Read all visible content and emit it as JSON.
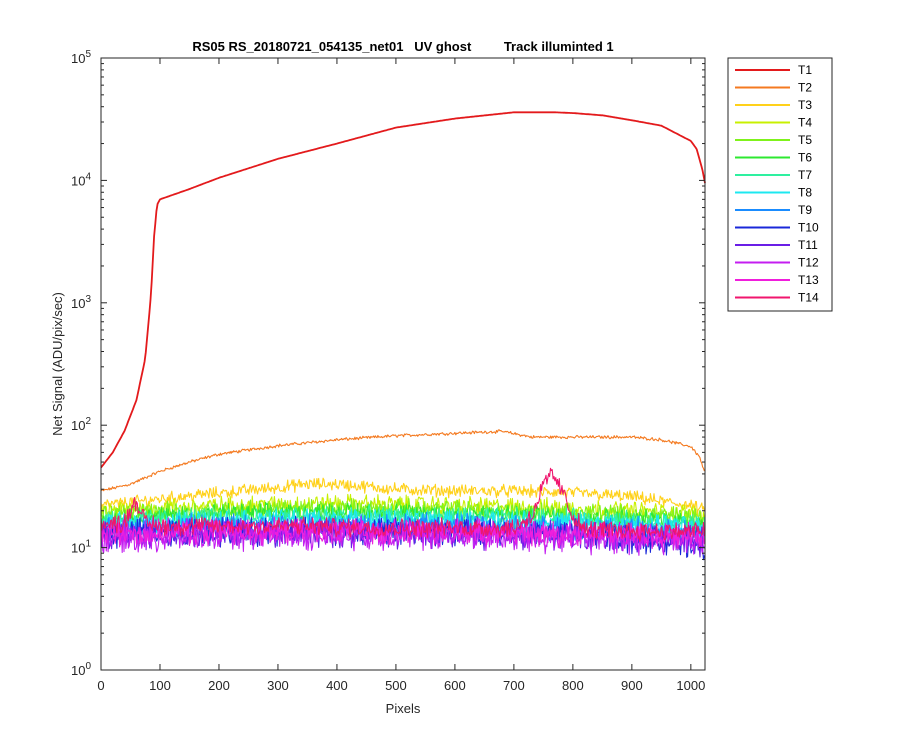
{
  "chart_data": {
    "type": "line",
    "title": "RS05 RS_20180721_054135_net01   UV ghost         Track illuminted 1",
    "xlabel": "Pixels",
    "ylabel": "Net Signal (ADU/pix/sec)",
    "xlim": [
      0,
      1024
    ],
    "ylim": [
      1,
      100000
    ],
    "yscale": "log",
    "xticks": [
      0,
      100,
      200,
      300,
      400,
      500,
      600,
      700,
      800,
      900,
      1000
    ],
    "xtick_labels": [
      "0",
      "100",
      "200",
      "300",
      "400",
      "500",
      "600",
      "700",
      "800",
      "900",
      "1000"
    ],
    "yticks": [
      1,
      10,
      100,
      1000,
      10000,
      100000
    ],
    "ytick_labels": [
      {
        "base": "10",
        "exp": "0"
      },
      {
        "base": "10",
        "exp": "1"
      },
      {
        "base": "10",
        "exp": "2"
      },
      {
        "base": "10",
        "exp": "3"
      },
      {
        "base": "10",
        "exp": "4"
      },
      {
        "base": "10",
        "exp": "5"
      }
    ],
    "grid": false,
    "legend_position": "outside-right",
    "series": [
      {
        "name": "T1",
        "color": "#e31a1c",
        "noise": 0,
        "x": [
          0,
          20,
          40,
          60,
          75,
          85,
          90,
          95,
          100,
          150,
          200,
          300,
          400,
          500,
          600,
          700,
          770,
          800,
          850,
          900,
          950,
          1000,
          1010,
          1020,
          1024
        ],
        "y": [
          45,
          60,
          90,
          160,
          350,
          1200,
          3500,
          6300,
          7000,
          8500,
          10500,
          15000,
          20000,
          27000,
          32000,
          36000,
          36000,
          35500,
          34000,
          31000,
          28000,
          21000,
          18000,
          12000,
          9500
        ]
      },
      {
        "name": "T2",
        "color": "#f47a20",
        "noise": 0.01,
        "x": [
          0,
          50,
          100,
          150,
          200,
          300,
          400,
          500,
          600,
          680,
          730,
          800,
          900,
          950,
          1000,
          1015,
          1024
        ],
        "y": [
          29,
          33,
          42,
          50,
          58,
          68,
          76,
          82,
          86,
          89,
          80,
          80,
          80,
          76,
          67,
          55,
          40
        ]
      },
      {
        "name": "T3",
        "color": "#ffd11a",
        "noise": 0.04,
        "x": [
          0,
          100,
          200,
          300,
          350,
          400,
          500,
          600,
          700,
          800,
          900,
          1000,
          1024
        ],
        "y": [
          22,
          25,
          28,
          31,
          33,
          33,
          30,
          29,
          29,
          28,
          26,
          22,
          20
        ]
      },
      {
        "name": "T4",
        "color": "#c8f000",
        "noise": 0.06,
        "x": [
          0,
          200,
          400,
          600,
          800,
          1000,
          1024
        ],
        "y": [
          20,
          22,
          23,
          22,
          21,
          19,
          18
        ]
      },
      {
        "name": "T5",
        "color": "#7ff21b",
        "noise": 0.06,
        "x": [
          0,
          200,
          400,
          600,
          800,
          1000,
          1024
        ],
        "y": [
          19,
          20.5,
          21,
          20.5,
          19.5,
          18,
          17
        ]
      },
      {
        "name": "T6",
        "color": "#2ee830",
        "noise": 0.06,
        "x": [
          0,
          200,
          400,
          600,
          800,
          1000,
          1024
        ],
        "y": [
          17.5,
          19,
          19.5,
          19,
          18,
          16.5,
          16
        ]
      },
      {
        "name": "T7",
        "color": "#2ef0a0",
        "noise": 0.07,
        "x": [
          0,
          200,
          400,
          600,
          800,
          1000,
          1024
        ],
        "y": [
          16.5,
          17.5,
          18,
          17.5,
          17,
          15.5,
          15
        ]
      },
      {
        "name": "T8",
        "color": "#1de8f0",
        "noise": 0.07,
        "x": [
          0,
          200,
          400,
          600,
          800,
          1000,
          1024
        ],
        "y": [
          15.5,
          16.5,
          17,
          16.5,
          16,
          14.5,
          14
        ]
      },
      {
        "name": "T9",
        "color": "#1a8cff",
        "noise": 0.08,
        "x": [
          0,
          200,
          400,
          600,
          800,
          1000,
          1024
        ],
        "y": [
          14.5,
          15,
          15.5,
          15,
          14.5,
          13,
          12.5
        ]
      },
      {
        "name": "T10",
        "color": "#1a28d9",
        "noise": 0.09,
        "x": [
          0,
          200,
          400,
          600,
          800,
          1000,
          1024
        ],
        "y": [
          13,
          13.5,
          14,
          13.5,
          13,
          11,
          10.5
        ]
      },
      {
        "name": "T11",
        "color": "#6a1ee6",
        "noise": 0.09,
        "x": [
          0,
          200,
          400,
          600,
          800,
          1000,
          1024
        ],
        "y": [
          12.5,
          13,
          13,
          13,
          12.5,
          11.5,
          11
        ]
      },
      {
        "name": "T12",
        "color": "#c41ef0",
        "noise": 0.1,
        "x": [
          0,
          200,
          400,
          600,
          800,
          1000,
          1024
        ],
        "y": [
          12,
          12.5,
          13,
          12.5,
          12,
          11.5,
          11
        ]
      },
      {
        "name": "T13",
        "color": "#f01edc",
        "noise": 0.08,
        "x": [
          0,
          200,
          400,
          600,
          800,
          1000,
          1024
        ],
        "y": [
          13,
          13.5,
          13.5,
          13.5,
          13,
          12.5,
          12.5
        ]
      },
      {
        "name": "T14",
        "color": "#f0166e",
        "noise": 0.06,
        "x": [
          0,
          40,
          55,
          60,
          75,
          100,
          300,
          500,
          700,
          730,
          750,
          765,
          780,
          800,
          820,
          1000,
          1024
        ],
        "y": [
          15,
          16,
          23,
          24,
          16,
          15,
          15,
          14.5,
          14.5,
          18,
          32,
          40,
          30,
          18,
          14,
          13.5,
          14
        ]
      }
    ]
  }
}
